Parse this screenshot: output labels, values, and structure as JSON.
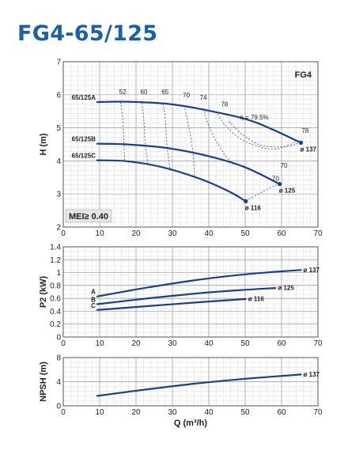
{
  "title": "FG4-65/125",
  "chart_data": [
    {
      "type": "line",
      "id": "head",
      "badge": "FG4",
      "mei_label": "MEI≥ 0.40",
      "ylabel": "H (m)",
      "xlim": [
        10,
        70
      ],
      "ylim": [
        2,
        7
      ],
      "x_ticks": [
        "0",
        "10",
        "20",
        "30",
        "40",
        "50",
        "60",
        "70"
      ],
      "y_ticks": [
        "2",
        "3",
        "4",
        "5",
        "6",
        "7"
      ],
      "grid": true,
      "series": [
        {
          "name": "65/125A",
          "end_label": "ø 137",
          "points": [
            [
              18,
              5.78
            ],
            [
              25,
              5.79
            ],
            [
              35,
              5.72
            ],
            [
              45,
              5.5
            ],
            [
              55,
              5.18
            ],
            [
              66,
              4.55
            ]
          ]
        },
        {
          "name": "65/125B",
          "end_label": "ø 125",
          "points": [
            [
              18,
              4.52
            ],
            [
              25,
              4.5
            ],
            [
              35,
              4.38
            ],
            [
              45,
              4.12
            ],
            [
              53,
              3.8
            ],
            [
              61,
              3.3
            ]
          ]
        },
        {
          "name": "65/125C",
          "end_label": "ø 116",
          "points": [
            [
              18,
              4.02
            ],
            [
              25,
              3.99
            ],
            [
              33,
              3.82
            ],
            [
              42,
              3.47
            ],
            [
              49,
              3.08
            ],
            [
              53,
              2.78
            ]
          ]
        }
      ],
      "efficiency_labels": [
        "52",
        "60",
        "65",
        "70",
        "74",
        "78",
        "η = 79.5%",
        "78",
        "70",
        "70"
      ],
      "efficiency_curves": [
        [
          [
            23.5,
            5.78
          ],
          [
            24,
            5.3
          ],
          [
            24.3,
            4.5
          ],
          [
            24.5,
            3.98
          ]
        ],
        [
          [
            28.5,
            5.76
          ],
          [
            29,
            5.2
          ],
          [
            29.3,
            4.48
          ],
          [
            30,
            3.87
          ]
        ],
        [
          [
            33.5,
            5.73
          ],
          [
            34,
            5.3
          ],
          [
            34.5,
            4.4
          ],
          [
            35.2,
            3.7
          ]
        ],
        [
          [
            38.5,
            5.68
          ],
          [
            39.5,
            5.1
          ],
          [
            40.5,
            4.3
          ],
          [
            41,
            3.52
          ]
        ],
        [
          [
            43,
            5.6
          ],
          [
            44,
            5.15
          ],
          [
            46,
            4.6
          ],
          [
            48,
            4.2
          ],
          [
            50,
            3.9
          ]
        ],
        [
          [
            46,
            5.5
          ],
          [
            48,
            5.1
          ],
          [
            52,
            4.65
          ],
          [
            57,
            4.4
          ],
          [
            61,
            4.38
          ],
          [
            65.5,
            4.62
          ]
        ],
        [
          [
            49,
            5.2
          ],
          [
            52,
            4.82
          ],
          [
            56,
            4.5
          ],
          [
            60,
            4.42
          ],
          [
            64,
            4.47
          ],
          [
            66,
            4.6
          ]
        ],
        [
          [
            53,
            2.8
          ],
          [
            56,
            3.0
          ],
          [
            59,
            3.2
          ],
          [
            61,
            3.3
          ]
        ]
      ]
    },
    {
      "type": "line",
      "id": "power",
      "ylabel": "P2 (kW)",
      "xlim": [
        10,
        70
      ],
      "ylim": [
        0,
        1.4
      ],
      "x_ticks": [
        "0",
        "10",
        "20",
        "30",
        "40",
        "50",
        "60",
        "70"
      ],
      "y_ticks": [
        "0",
        "0.2",
        "0.4",
        "0.6",
        "0.8",
        "1",
        "1.2",
        "1.4"
      ],
      "grid": true,
      "series": [
        {
          "name": "A",
          "end_label": "ø 137",
          "points": [
            [
              18,
              0.63
            ],
            [
              30,
              0.77
            ],
            [
              42,
              0.89
            ],
            [
              54,
              0.98
            ],
            [
              66,
              1.04
            ]
          ]
        },
        {
          "name": "B",
          "end_label": "ø 125",
          "points": [
            [
              18,
              0.51
            ],
            [
              30,
              0.6
            ],
            [
              42,
              0.68
            ],
            [
              52,
              0.73
            ],
            [
              60,
              0.76
            ]
          ]
        },
        {
          "name": "C",
          "end_label": "ø 116",
          "points": [
            [
              18,
              0.42
            ],
            [
              30,
              0.48
            ],
            [
              42,
              0.54
            ],
            [
              53,
              0.59
            ]
          ]
        }
      ]
    },
    {
      "type": "line",
      "id": "npsh",
      "ylabel": "NPSH (m)",
      "xlabel": "Q (m³/h)",
      "xlim": [
        10,
        70
      ],
      "ylim": [
        0,
        8
      ],
      "x_ticks": [
        "0",
        "10",
        "20",
        "30",
        "40",
        "50",
        "60",
        "70"
      ],
      "y_ticks": [
        "0",
        "4",
        "8"
      ],
      "grid": true,
      "series": [
        {
          "name": "",
          "end_label": "ø 137",
          "points": [
            [
              18,
              1.65
            ],
            [
              30,
              2.75
            ],
            [
              42,
              3.75
            ],
            [
              54,
              4.55
            ],
            [
              66,
              5.2
            ]
          ]
        }
      ]
    }
  ]
}
